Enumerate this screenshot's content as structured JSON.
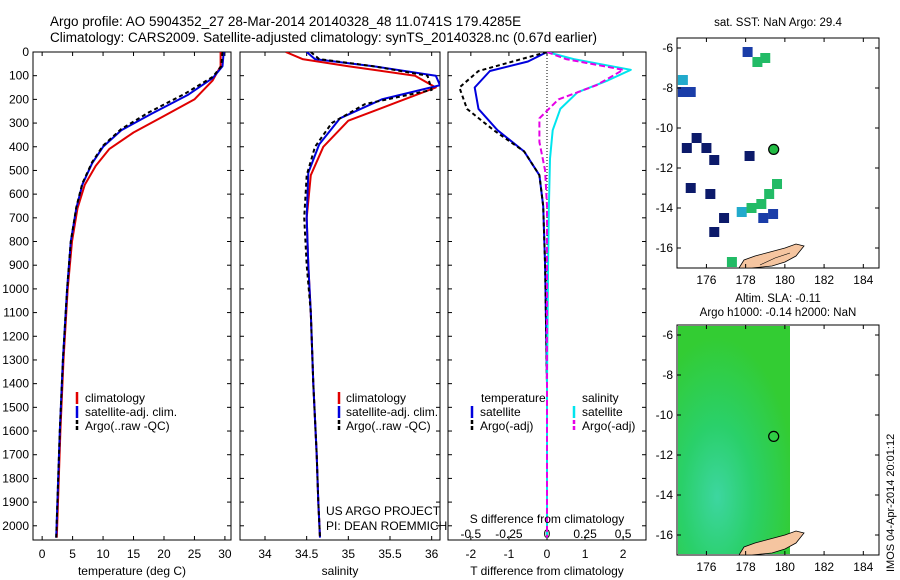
{
  "header": {
    "line1": "Argo profile: AO 5904352_27 28-Mar-2014 20140328_48 11.0741S 179.4285E",
    "line2": "Climatology: CARS2009. Satellite-adjusted climatology: synTS_20140328.nc (0.67d earlier)"
  },
  "colors": {
    "climatology": "#e00000",
    "satellite": "#0000dd",
    "argo": "#000000",
    "cyan": "#00e5ee",
    "magenta": "#e600e6",
    "land": "#f5c5a0",
    "sla_green": "#22cc44"
  },
  "depth_axis": {
    "ticks": [
      "0",
      "100",
      "200",
      "300",
      "400",
      "500",
      "600",
      "700",
      "800",
      "900",
      "1000",
      "1100",
      "1200",
      "1300",
      "1400",
      "1500",
      "1600",
      "1700",
      "1800",
      "1900",
      "2000"
    ]
  },
  "chart_data": [
    {
      "type": "line",
      "name": "temperature",
      "xlabel": "temperature (deg C)",
      "xlim": [
        -1.5,
        31
      ],
      "ylim": [
        2060,
        0
      ],
      "xticks": [
        "0",
        "5",
        "10",
        "15",
        "20",
        "25",
        "30"
      ],
      "legend": [
        "climatology",
        "satellite-adj. clim.",
        "Argo(..raw -QC)"
      ],
      "series": [
        {
          "name": "climatology",
          "color": "#e00000",
          "dash": "",
          "x": [
            29.3,
            29.3,
            28.0,
            25.0,
            20.0,
            15.0,
            11.0,
            8.8,
            7.0,
            5.8,
            4.9,
            4.2,
            3.5,
            3.0,
            2.6,
            2.4
          ],
          "y": [
            0,
            60,
            120,
            200,
            270,
            340,
            410,
            480,
            560,
            660,
            800,
            1000,
            1300,
            1600,
            1900,
            2050
          ]
        },
        {
          "name": "satellite-adj. clim.",
          "color": "#0000dd",
          "dash": "",
          "x": [
            29.8,
            29.6,
            28.0,
            24.0,
            18.0,
            13.0,
            10.0,
            8.2,
            6.6,
            5.6,
            4.7,
            4.1,
            3.4,
            2.9,
            2.5,
            2.3
          ],
          "y": [
            0,
            60,
            110,
            180,
            260,
            330,
            400,
            470,
            560,
            660,
            800,
            1000,
            1300,
            1600,
            1900,
            2050
          ]
        },
        {
          "name": "Argo(..raw -QC)",
          "color": "#000000",
          "dash": "4,3",
          "x": [
            29.6,
            29.4,
            28.0,
            23.5,
            17.5,
            13.0,
            10.0,
            8.2,
            6.6,
            5.6,
            4.7,
            4.1,
            3.4,
            2.9,
            2.5,
            2.3
          ],
          "y": [
            0,
            60,
            105,
            175,
            255,
            325,
            395,
            465,
            555,
            655,
            800,
            1000,
            1300,
            1600,
            1900,
            2050
          ]
        }
      ]
    },
    {
      "type": "line",
      "name": "salinity",
      "xlabel": "salinity",
      "xlim": [
        33.7,
        36.1
      ],
      "ylim": [
        2060,
        0
      ],
      "xticks": [
        "34",
        "34.5",
        "35",
        "35.5",
        "36"
      ],
      "legend": [
        "climatology",
        "satellite-adj. clim.",
        "Argo(..raw -QC)"
      ],
      "annotation": [
        "US ARGO PROJECT",
        "PI: DEAN ROEMMICH"
      ],
      "series": [
        {
          "name": "climatology",
          "color": "#e00000",
          "dash": "",
          "x": [
            34.25,
            34.45,
            35.0,
            35.8,
            36.05,
            35.6,
            35.0,
            34.7,
            34.55,
            34.5,
            34.52,
            34.55,
            34.58,
            34.62,
            34.64,
            34.66
          ],
          "y": [
            0,
            30,
            60,
            100,
            150,
            210,
            290,
            400,
            520,
            700,
            900,
            1100,
            1400,
            1700,
            1900,
            2050
          ]
        },
        {
          "name": "satellite-adj. clim.",
          "color": "#0000dd",
          "dash": "",
          "x": [
            34.5,
            34.6,
            35.3,
            36.05,
            36.1,
            35.4,
            34.9,
            34.65,
            34.52,
            34.5,
            34.52,
            34.55,
            34.58,
            34.62,
            34.64,
            34.66
          ],
          "y": [
            0,
            30,
            60,
            100,
            140,
            200,
            280,
            390,
            510,
            700,
            900,
            1100,
            1400,
            1700,
            1900,
            2050
          ]
        },
        {
          "name": "Argo(..raw -QC)",
          "color": "#000000",
          "dash": "4,3",
          "x": [
            34.55,
            34.65,
            35.3,
            35.95,
            36.0,
            35.2,
            34.8,
            34.6,
            34.5,
            34.47,
            34.5,
            34.55,
            34.58,
            34.62,
            34.64,
            34.66
          ],
          "y": [
            0,
            30,
            60,
            100,
            160,
            220,
            300,
            400,
            520,
            700,
            900,
            1100,
            1400,
            1700,
            1900,
            2050
          ]
        }
      ]
    },
    {
      "type": "line",
      "name": "difference",
      "xlabel": "T difference from climatology",
      "xlabel_top": "S difference from climatology",
      "xlim": [
        -2.6,
        2.6
      ],
      "ylim": [
        2060,
        0
      ],
      "xticks_T": [
        "-2",
        "-1",
        "0",
        "1",
        "2"
      ],
      "xticks_S": [
        "-0.5",
        "-0.25",
        "0",
        "0.25",
        "0.5"
      ],
      "legend_title_T": "temperature",
      "legend_title_S": "salinity",
      "legend_T": [
        "satellite",
        "Argo(-adj)"
      ],
      "legend_S": [
        "satellite",
        "Argo(-adj)"
      ],
      "series": [
        {
          "name": "T satellite",
          "color": "#0000dd",
          "dash": "",
          "x": [
            0.0,
            -0.5,
            -1.5,
            -1.9,
            -1.8,
            -1.3,
            -0.6,
            -0.2,
            -0.1,
            -0.05,
            0.0,
            0.0
          ],
          "y": [
            0,
            40,
            80,
            150,
            240,
            330,
            420,
            520,
            650,
            900,
            1400,
            2050
          ]
        },
        {
          "name": "T Argo(-adj)",
          "color": "#000000",
          "dash": "4,3",
          "x": [
            0.0,
            -0.9,
            -1.8,
            -2.3,
            -2.1,
            -1.4,
            -0.6,
            -0.2,
            -0.1,
            -0.05,
            0.0,
            0.0
          ],
          "y": [
            0,
            40,
            80,
            150,
            240,
            330,
            420,
            520,
            650,
            900,
            1400,
            2050
          ]
        },
        {
          "name": "S satellite",
          "color": "#00e5ee",
          "dash": "",
          "x": [
            0.0,
            0.7,
            2.2,
            1.6,
            0.8,
            0.35,
            0.15,
            0.08,
            0.05,
            0.03,
            0.0,
            0.0
          ],
          "y": [
            0,
            30,
            75,
            120,
            170,
            240,
            330,
            450,
            650,
            900,
            1400,
            2050
          ]
        },
        {
          "name": "S Argo(-adj)",
          "color": "#e600e6",
          "dash": "6,3",
          "x": [
            0.0,
            0.5,
            2.0,
            1.3,
            0.3,
            -0.2,
            -0.2,
            -0.05,
            0.0,
            0.0,
            0.0,
            0.0
          ],
          "y": [
            0,
            30,
            75,
            140,
            200,
            280,
            380,
            500,
            650,
            900,
            1400,
            2050
          ]
        }
      ]
    },
    {
      "type": "heatmap",
      "name": "sst_map",
      "title": "sat. SST: NaN Argo: 29.4",
      "xlim": [
        174.5,
        184.8
      ],
      "ylim": [
        -17,
        -5.5
      ],
      "xticks": [
        "176",
        "178",
        "180",
        "182",
        "184"
      ],
      "yticks": [
        "-6",
        "-8",
        "-10",
        "-12",
        "-14",
        "-16"
      ],
      "argo_position": [
        179.43,
        -11.07
      ],
      "cells": [
        {
          "lon": 178.1,
          "lat": -6.2,
          "c": "#1a3da8"
        },
        {
          "lon": 178.6,
          "lat": -6.7,
          "c": "#22bb66"
        },
        {
          "lon": 179.0,
          "lat": -6.5,
          "c": "#22bb66"
        },
        {
          "lon": 174.8,
          "lat": -7.6,
          "c": "#22aacc"
        },
        {
          "lon": 175.2,
          "lat": -8.2,
          "c": "#1a3da8"
        },
        {
          "lon": 174.8,
          "lat": -8.2,
          "c": "#1a3da8"
        },
        {
          "lon": 175.5,
          "lat": -10.5,
          "c": "#0c1a6a"
        },
        {
          "lon": 175.0,
          "lat": -11.0,
          "c": "#0c1a6a"
        },
        {
          "lon": 176.0,
          "lat": -11.0,
          "c": "#0c1a6a"
        },
        {
          "lon": 176.4,
          "lat": -11.6,
          "c": "#0c1a6a"
        },
        {
          "lon": 178.2,
          "lat": -11.4,
          "c": "#0c1a6a"
        },
        {
          "lon": 175.2,
          "lat": -13.0,
          "c": "#0c1a6a"
        },
        {
          "lon": 176.2,
          "lat": -13.3,
          "c": "#0c1a6a"
        },
        {
          "lon": 176.4,
          "lat": -15.2,
          "c": "#0c1a6a"
        },
        {
          "lon": 176.9,
          "lat": -14.5,
          "c": "#0c1a6a"
        },
        {
          "lon": 177.8,
          "lat": -14.2,
          "c": "#22aacc"
        },
        {
          "lon": 178.3,
          "lat": -14.0,
          "c": "#22bb66"
        },
        {
          "lon": 178.8,
          "lat": -13.8,
          "c": "#22bb66"
        },
        {
          "lon": 179.2,
          "lat": -13.3,
          "c": "#22bb66"
        },
        {
          "lon": 179.6,
          "lat": -12.8,
          "c": "#22bb66"
        },
        {
          "lon": 179.4,
          "lat": -14.3,
          "c": "#1a3da8"
        },
        {
          "lon": 178.9,
          "lat": -14.5,
          "c": "#1a3da8"
        },
        {
          "lon": 177.3,
          "lat": -16.7,
          "c": "#22bb66"
        }
      ]
    },
    {
      "type": "heatmap",
      "name": "sla_map",
      "title_line1": "Altim. SLA: -0.11",
      "title_line2": "Argo h1000: -0.14 h2000: NaN",
      "xlim": [
        174.5,
        184.8
      ],
      "ylim": [
        -17,
        -5.5
      ],
      "xticks": [
        "176",
        "178",
        "180",
        "182",
        "184"
      ],
      "yticks": [
        "-6",
        "-8",
        "-10",
        "-12",
        "-14",
        "-16"
      ],
      "field_extent_lon": [
        174.5,
        180.0
      ],
      "argo_position": [
        179.43,
        -11.07
      ]
    }
  ],
  "footer_stamp": "IMOS 04-Apr-2014 20:01:12"
}
